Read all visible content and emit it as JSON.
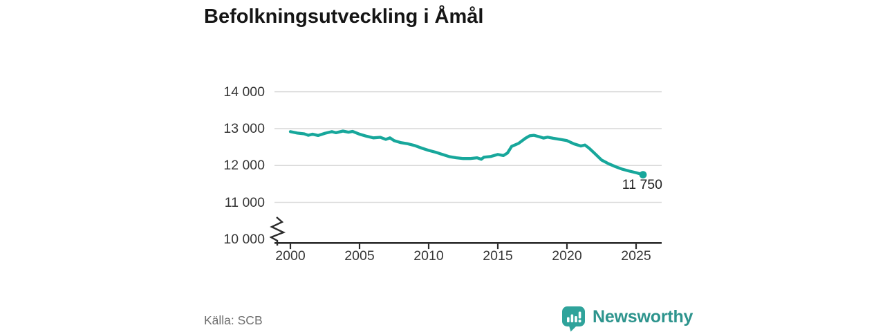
{
  "title": "Befolkningsutveckling i Åmål",
  "source": "Källa: SCB",
  "brand": {
    "name": "Newsworthy",
    "icon": "bar-chart-speech-bubble-icon"
  },
  "colors": {
    "line": "#17a79b",
    "grid": "#d9d9d9",
    "axis": "#2b2b2b",
    "title_text": "#151515",
    "tick_text": "#363636",
    "end_label_text": "#222222",
    "source_text": "#6e6e6e",
    "brand_teal": "#2d948d",
    "background": "#ffffff"
  },
  "chart_data": {
    "type": "line",
    "title": "Befolkningsutveckling i Åmål",
    "xlabel": "",
    "ylabel": "",
    "grid": "horizontal",
    "legend": "none",
    "axis_break_below": 11000,
    "xlim": [
      1998.8,
      2026.9
    ],
    "ylim": [
      10000,
      14000
    ],
    "x_ticks": [
      2000,
      2005,
      2010,
      2015,
      2020,
      2025
    ],
    "y_ticks": [
      14000,
      13000,
      12000,
      11000,
      10000
    ],
    "y_tick_labels": [
      "14 000",
      "13 000",
      "12 000",
      "11 000",
      "10 000"
    ],
    "x": [
      2000,
      2000.5,
      2001,
      2001.3,
      2001.6,
      2002,
      2002.5,
      2003,
      2003.3,
      2003.8,
      2004.2,
      2004.5,
      2005,
      2005.5,
      2006,
      2006.5,
      2006.9,
      2007.2,
      2007.5,
      2008,
      2008.5,
      2009,
      2009.5,
      2010,
      2010.5,
      2011,
      2011.5,
      2012,
      2012.5,
      2013,
      2013.5,
      2013.8,
      2014,
      2014.5,
      2015,
      2015.4,
      2015.7,
      2016,
      2016.5,
      2017,
      2017.3,
      2017.6,
      2018,
      2018.3,
      2018.6,
      2019,
      2019.5,
      2020,
      2020.5,
      2021,
      2021.3,
      2021.6,
      2022,
      2022.5,
      2023,
      2023.5,
      2024,
      2024.5,
      2025,
      2025.5
    ],
    "y": [
      12920,
      12880,
      12860,
      12820,
      12850,
      12815,
      12875,
      12920,
      12890,
      12935,
      12905,
      12925,
      12850,
      12795,
      12750,
      12765,
      12710,
      12750,
      12675,
      12620,
      12590,
      12540,
      12470,
      12410,
      12360,
      12300,
      12240,
      12210,
      12190,
      12190,
      12210,
      12170,
      12225,
      12245,
      12300,
      12270,
      12340,
      12520,
      12600,
      12740,
      12805,
      12820,
      12780,
      12745,
      12770,
      12740,
      12710,
      12675,
      12590,
      12530,
      12555,
      12470,
      12330,
      12150,
      12050,
      11970,
      11900,
      11850,
      11805,
      11750
    ],
    "end_point": {
      "x": 2025.5,
      "y": 11750,
      "label": "11 750"
    }
  }
}
